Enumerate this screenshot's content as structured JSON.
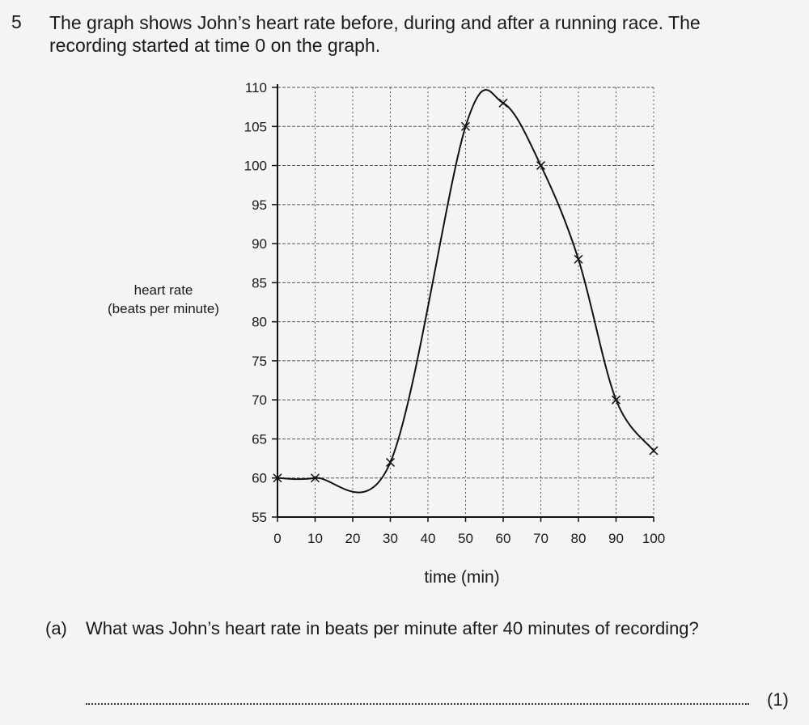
{
  "question": {
    "number": "5",
    "text": "The graph shows John’s heart rate before, during and after a running race. The recording started at time 0 on the graph."
  },
  "chart_data": {
    "type": "line",
    "ylabel_line1": "heart rate",
    "ylabel_line2": "(beats per minute)",
    "xlabel": "time (min)",
    "xlim": [
      0,
      100
    ],
    "ylim": [
      55,
      110
    ],
    "x_ticks": [
      0,
      10,
      20,
      30,
      40,
      50,
      60,
      70,
      80,
      90,
      100
    ],
    "y_ticks": [
      55,
      60,
      65,
      70,
      75,
      80,
      85,
      90,
      95,
      100,
      105,
      110
    ],
    "grid": true,
    "series": [
      {
        "points": [
          [
            0,
            60
          ],
          [
            10,
            60
          ],
          [
            30,
            62
          ],
          [
            50,
            105
          ],
          [
            60,
            108
          ],
          [
            70,
            100
          ],
          [
            80,
            88
          ],
          [
            90,
            70
          ],
          [
            100,
            63.5
          ]
        ]
      }
    ]
  },
  "part_a": {
    "label": "(a)",
    "text": "What was John’s heart rate in beats per minute after 40 minutes of recording?",
    "marks": "(1)"
  }
}
